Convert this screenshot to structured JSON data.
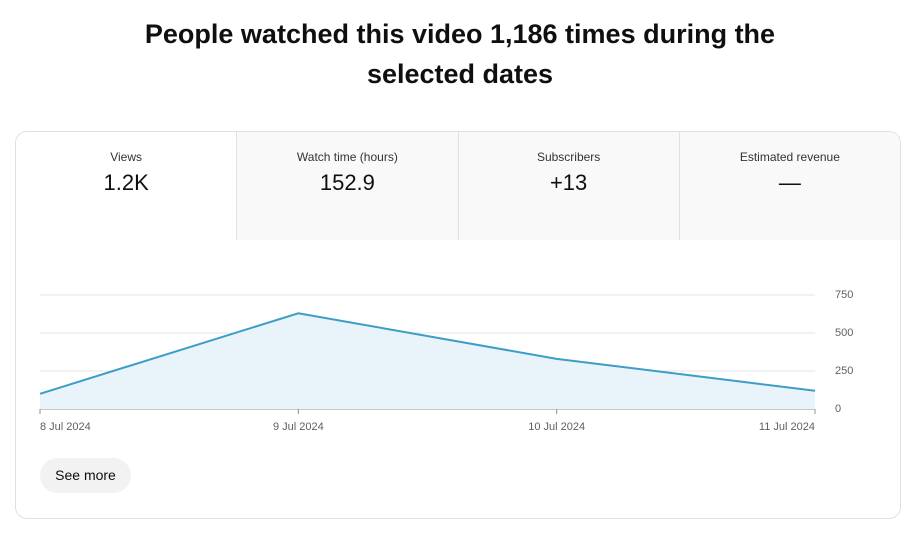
{
  "title": "People watched this video 1,186 times during the selected dates",
  "metrics": [
    {
      "label": "Views",
      "value": "1.2K"
    },
    {
      "label": "Watch time (hours)",
      "value": "152.9"
    },
    {
      "label": "Subscribers",
      "value": "+13"
    },
    {
      "label": "Estimated revenue",
      "value": "—"
    }
  ],
  "chart_data": {
    "type": "line",
    "x": [
      "8 Jul 2024",
      "9 Jul 2024",
      "10 Jul 2024",
      "11 Jul 2024"
    ],
    "values": [
      100,
      630,
      330,
      120
    ],
    "color": "#3d9dc7",
    "ylim": [
      0,
      750
    ],
    "yticks": [
      0,
      250,
      500,
      750
    ],
    "grid": true
  },
  "button": "See more"
}
